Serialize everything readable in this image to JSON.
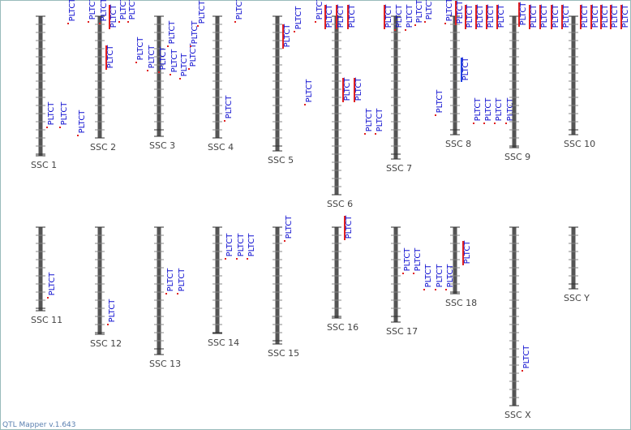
{
  "footer": "QTL Mapper v.1.643",
  "chromosomes": [
    {
      "name": "SSC 1",
      "qtls": [
        "PLTCT",
        "PLTCT",
        "PLTCT",
        "PLTCT"
      ]
    },
    {
      "name": "SSC 2",
      "qtls": [
        "PLTCT",
        "PLTCT",
        "PLTCT",
        "PLTCT",
        "PLTCT",
        "PLTCT"
      ]
    },
    {
      "name": "SSC 3",
      "qtls": [
        "PLTCT",
        "PLTCT",
        "PLTCT",
        "PLTCT",
        "PLTCT",
        "PLTCT",
        "PLTCT",
        "PLTCT",
        "PLTCT"
      ]
    },
    {
      "name": "SSC 4",
      "qtls": [
        "PLTCT",
        "PLTCT"
      ]
    },
    {
      "name": "SSC 5",
      "qtls": [
        "PLTCT",
        "PLTCT",
        "PLTCT",
        "PLTCT"
      ]
    },
    {
      "name": "SSC 6",
      "qtls": [
        "PLTCT",
        "PLTCT",
        "PLTCT",
        "PLTCT",
        "PLTCT",
        "PLTCT",
        "PLTCT"
      ]
    },
    {
      "name": "SSC 7",
      "qtls": [
        "PLTCT",
        "PLTCT",
        "PLTCT",
        "PLTCT",
        "PLTCT"
      ]
    },
    {
      "name": "SSC 8",
      "qtls": [
        "PLTCT",
        "PLTCT",
        "PLTCT",
        "PLTCT",
        "PLTCT",
        "PLTCT",
        "PLTCT",
        "PLTCT"
      ]
    },
    {
      "name": "SSC 9",
      "qtls": [
        "PLTCT",
        "PLTCT",
        "PLTCT",
        "PLTCT",
        "PLTCT",
        "PLTCT"
      ]
    },
    {
      "name": "SSC 10",
      "qtls": [
        "PLTCT",
        "PLTCT",
        "PLTCT",
        "PLTCT",
        "PLTCT",
        "PLTCT",
        "PLTCT",
        "PLTCT"
      ]
    },
    {
      "name": "SSC 11",
      "qtls": [
        "PLTCT"
      ]
    },
    {
      "name": "SSC 12",
      "qtls": [
        "PLTCT"
      ]
    },
    {
      "name": "SSC 13",
      "qtls": [
        "PLTCT",
        "PLTCT"
      ]
    },
    {
      "name": "SSC 14",
      "qtls": [
        "PLTCT",
        "PLTCT",
        "PLTCT"
      ]
    },
    {
      "name": "SSC 15",
      "qtls": [
        "PLTCT"
      ]
    },
    {
      "name": "SSC 16",
      "qtls": [
        "PLTCT"
      ]
    },
    {
      "name": "SSC 17",
      "qtls": [
        "PLTCT",
        "PLTCT",
        "PLTCT",
        "PLTCT",
        "PLTCT"
      ]
    },
    {
      "name": "SSC 18",
      "qtls": [
        "PLTCT"
      ]
    },
    {
      "name": "SSC X",
      "qtls": [
        "PLTCT"
      ]
    },
    {
      "name": "SSC Y",
      "qtls": []
    }
  ]
}
